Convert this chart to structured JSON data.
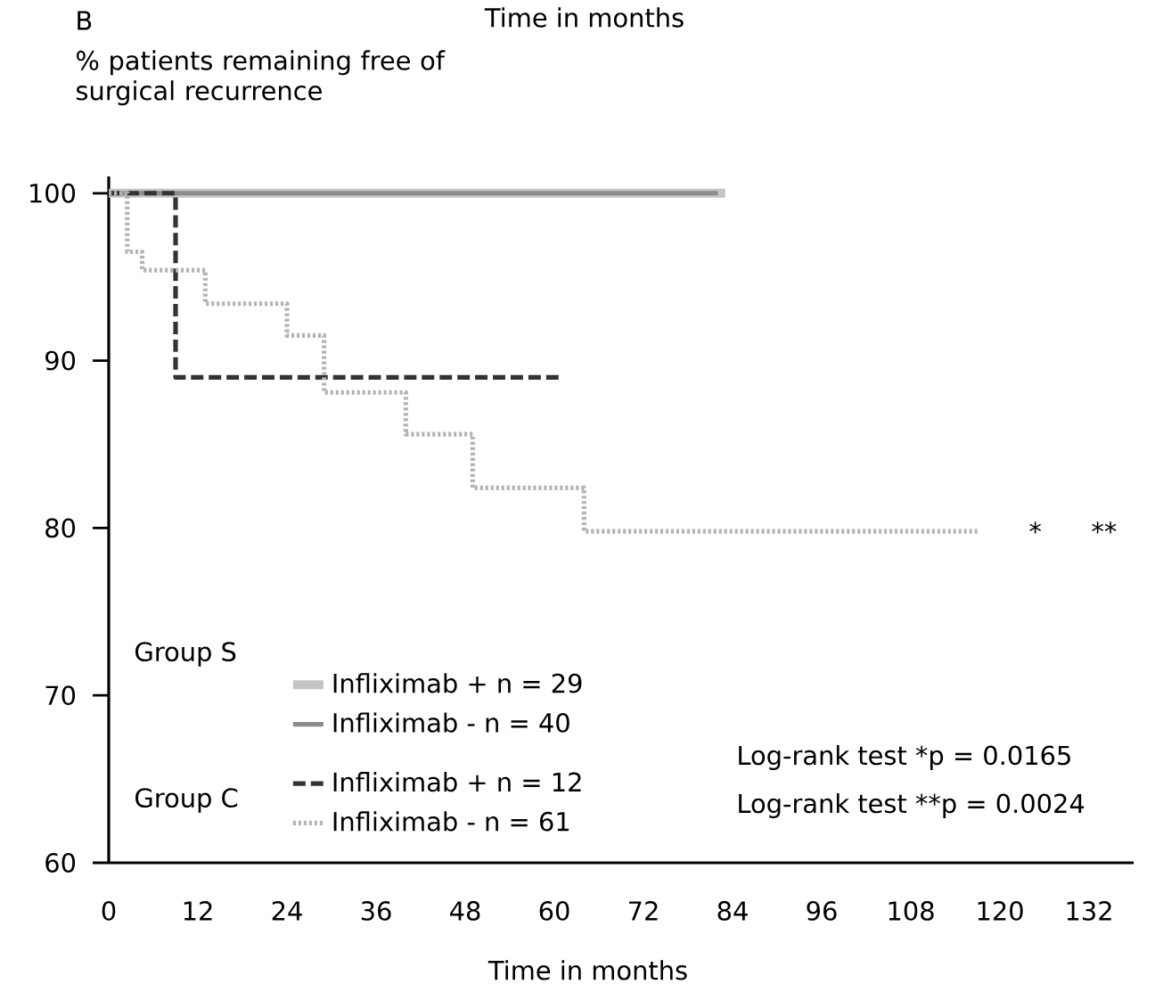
{
  "chart_data": {
    "type": "step",
    "title": "B",
    "subtitle": "Time in months",
    "xlabel": "Time in months",
    "ylabel": "% patients remaining free of surgical recurrence",
    "xlim": [
      0,
      138
    ],
    "ylim": [
      60,
      101
    ],
    "xticks": [
      0,
      12,
      24,
      36,
      48,
      60,
      72,
      84,
      96,
      108,
      120,
      132
    ],
    "yticks": [
      60,
      70,
      80,
      90,
      100
    ],
    "grid": false,
    "legend": "bottom left",
    "series": [
      {
        "name": "Infliximab +  n = 29",
        "color": "#c4c4c4",
        "line_style": "solid",
        "x": [
          0,
          83
        ],
        "values": [
          100,
          100
        ]
      },
      {
        "name": "Infliximab  -  n = 40",
        "color": "#8c8c8c",
        "line_style": "solid",
        "x": [
          0,
          82
        ],
        "values": [
          100,
          100
        ]
      },
      {
        "name": "Infliximab +  n = 12",
        "color": "#333333",
        "line_style": "dashed",
        "x": [
          0,
          9,
          61
        ],
        "values": [
          100,
          89,
          89
        ]
      },
      {
        "name": "Infliximab  -  n = 61",
        "color": "#b4b4b4",
        "line_style": "dotted",
        "x": [
          0,
          2.5,
          4.5,
          13,
          24,
          29,
          40,
          49,
          64,
          117
        ],
        "values": [
          100,
          96.5,
          95.4,
          93.4,
          91.5,
          88.1,
          85.6,
          82.4,
          79.8,
          79.8
        ]
      }
    ],
    "annotations": [
      "Group S",
      "Group C",
      "Log-rank test *p = 0.0165",
      "Log-rank test **p = 0.0024",
      "*",
      "**"
    ]
  }
}
